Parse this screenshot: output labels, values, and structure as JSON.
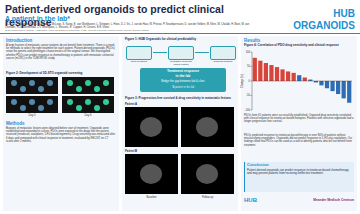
{
  "header": {
    "title": "Patient-derived organoids to predict clinical response",
    "subtitle": "A patient in the lab*",
    "authors": "L.C. Ooft, F. Weeber, K.K. Dijkstra, C.M. McLean, S. Kaing, E. van Werkhoven, L. Schipper, L. Hoes, D.J. Vis, J. van de Haar, W. Prevoo, P. Snaebjornsson, D. van der Velden, M. Klein, M. Chalabi, H. Boot, M. van Leerdam, H.J. Bloemendal, L.V. Beerepoot, L. Wessels, E. Cuppen, H. Clevers, E.E. Voest",
    "affiliations": "Netherlands Cancer Institute, Amsterdam; Hubrecht Organoid Technology (HUB), Utrecht; University Medical Center Utrecht; Oncode Institute",
    "logo": "HUB ORGANOIDS"
  },
  "intro": {
    "heading": "Introduction",
    "text": "A large fraction of metastatic cancer patients do not benefit from treatment. There is a need for methods to select the right treatment for each patient. Patient-derived organoids (PDOs) retain the genetic and phenotypic characteristics of the original tumour. We investigated whether PDOs can predict response to chemotherapy in patients with metastatic colorectal cancer (mCRC) in the TUMOROID study."
  },
  "fig1": {
    "caption": "Figure 1: HUB Organoids for clinical predictability",
    "nodes": [
      "Drug treatment",
      "Metastatic colorectal cancer patient",
      "Organoid biobank"
    ],
    "center": [
      "Treatment response",
      "in the lab",
      "Bridge the gap between lab & clinic",
      "*A patient in the lab"
    ]
  },
  "fig2": {
    "caption": "Figure 2: Development of 3D-STO organoid screening",
    "panels": [
      "Day 0",
      "Day 6"
    ]
  },
  "methods": {
    "heading": "Methods",
    "text": "Biopsies of metastatic lesions were obtained before start of treatment. Organoids were established and expanded in culture. PDOs were exposed to the drugs that the patient received (irinotecan, oxaliplatin, 5-FU based regimens). Drug sensitivity was measured after 6 days and compared with clinical response to treatment, evaluated by RECIST on CT scans after 2 months."
  },
  "fig3": {
    "caption": "Figure 3: Progression-free survival & drug sensitivity in metastatic lesions",
    "panels": [
      "Patient A",
      "Patient B",
      "Baseline",
      "Follow-up"
    ]
  },
  "results": {
    "heading": "Results",
    "text": "PDOs from 61 patients were successfully established. Organoid drug sensitivity correlated with clinical response for irinotecan based therapies. Patients with sensitive organoids had a longer progression-free survival.",
    "text2": "PDOs predicted response to irinotecan-based therapy in over 80% of patients without misclassifying responders. Organoids did not predict response to 5-FU plus oxaliplatin. Our findings show that PDOs can be used as a tool to identify patients who will not benefit from treatment."
  },
  "conclusion": {
    "heading": "Conclusion",
    "text": "Patient-derived organoids can predict response to irinotecan-based chemotherapy and may prevent patients from receiving ineffective treatment."
  },
  "logos": [
    "HUB",
    "Meander Medisch Centrum"
  ],
  "chart_data": {
    "type": "bar",
    "title": "Figure 4: Correlation of PDO drug sensitivity and clinical response",
    "y_label": "Change (%)",
    "categories": [
      null,
      null,
      null,
      null,
      null,
      null,
      null,
      null,
      null,
      null,
      null,
      null,
      null,
      null,
      null,
      null,
      null,
      null
    ],
    "values": [
      80,
      70,
      62,
      55,
      48,
      40,
      33,
      28,
      20,
      12,
      5,
      -5,
      -15,
      -25,
      -35,
      -45,
      -60,
      -75
    ],
    "colors": [
      "#d9443a",
      "#d9443a",
      "#d9443a",
      "#d9443a",
      "#d9443a",
      "#d9443a",
      "#d9443a",
      "#d9443a",
      "#2e6db4",
      "#d9443a",
      "#2e6db4",
      "#2e6db4",
      "#2e6db4",
      "#2e6db4",
      "#2e6db4",
      "#2e6db4",
      "#2e6db4",
      "#2e6db4"
    ],
    "ylim": [
      -100,
      100
    ],
    "yticks": [
      -100,
      -50,
      0,
      50,
      100
    ],
    "grid": false
  }
}
